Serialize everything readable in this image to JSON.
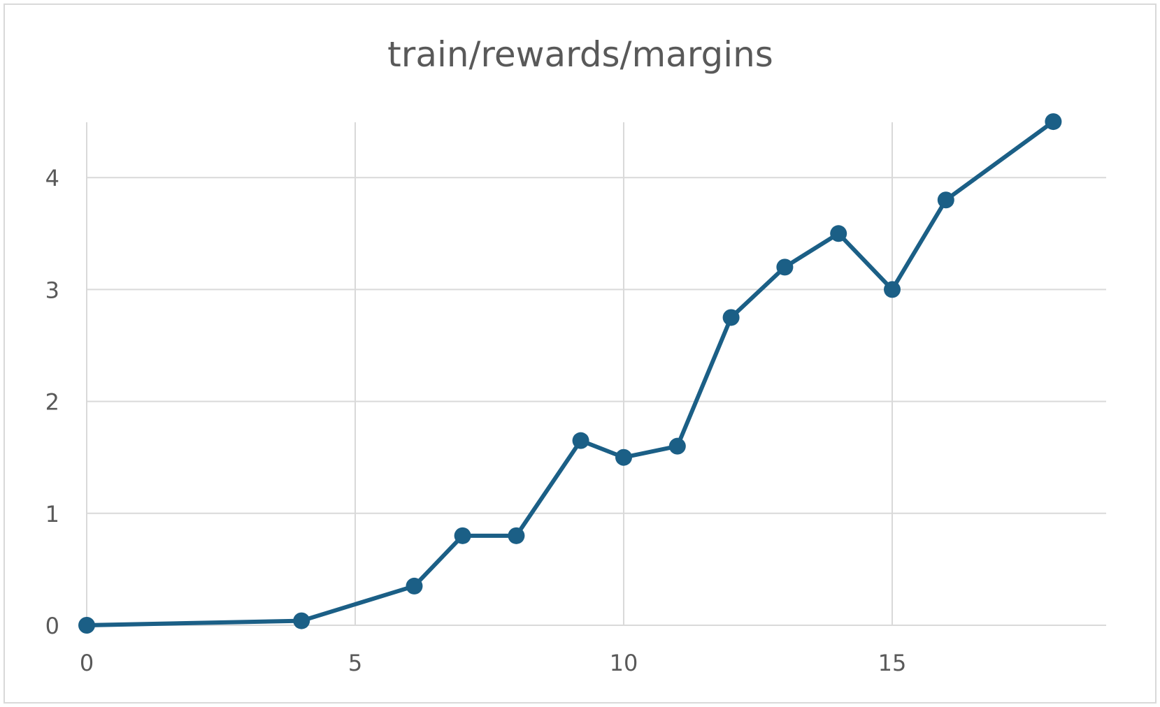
{
  "chart_data": {
    "type": "scatter",
    "title": "train/rewards/margins",
    "xlabel": "",
    "ylabel": "",
    "xlim": [
      0,
      19
    ],
    "ylim": [
      0,
      4.5
    ],
    "xticks": [
      0,
      5,
      10,
      15
    ],
    "yticks": [
      0,
      1,
      2,
      3,
      4
    ],
    "grid": true,
    "legend": "none",
    "series": [
      {
        "color": "#1b5f86",
        "points": [
          {
            "x": 0,
            "y": 0
          },
          {
            "x": 4,
            "y": 0.04
          },
          {
            "x": 6.1,
            "y": 0.35
          },
          {
            "x": 7,
            "y": 0.8
          },
          {
            "x": 8,
            "y": 0.8
          },
          {
            "x": 9.2,
            "y": 1.65
          },
          {
            "x": 10,
            "y": 1.5
          },
          {
            "x": 11,
            "y": 1.6
          },
          {
            "x": 12,
            "y": 2.75
          },
          {
            "x": 13,
            "y": 3.2
          },
          {
            "x": 14,
            "y": 3.5
          },
          {
            "x": 15,
            "y": 3.0
          },
          {
            "x": 16,
            "y": 3.8
          },
          {
            "x": 18,
            "y": 4.5
          }
        ]
      }
    ],
    "colors": {
      "grid": "#d9d9d9",
      "text": "#595959",
      "series": "#1b5f86"
    }
  }
}
